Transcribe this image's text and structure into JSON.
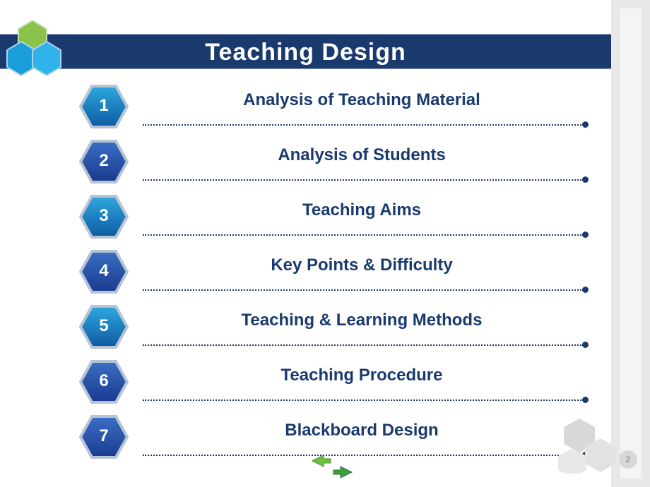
{
  "title": "Teaching Design",
  "title_bar_color": "#1a3a6e",
  "title_text_color": "#ffffff",
  "sidebar_color": "#e8e8e8",
  "sidebar_inner_color": "#f4f4f4",
  "logo_hexes": [
    {
      "fill": "#8bc34a",
      "stroke": "#6b9e2f"
    },
    {
      "fill": "#1a9edb",
      "stroke": "#0d6fa3"
    },
    {
      "fill": "#2fb3e8",
      "stroke": "#0d6fa3"
    }
  ],
  "item_text_color": "#1a3a6e",
  "item_number_color": "#ffffff",
  "dotted_line_color": "#1a3a6e",
  "items": [
    {
      "num": "1",
      "label": "Analysis of Teaching Material",
      "hex_fill_top": "#2fa8e0",
      "hex_fill_bot": "#0d5aa0",
      "hex_border": "#b8c4d4"
    },
    {
      "num": "2",
      "label": "Analysis of Students",
      "hex_fill_top": "#3a6fc4",
      "hex_fill_bot": "#1a3a8e",
      "hex_border": "#b8c4d4"
    },
    {
      "num": "3",
      "label": "Teaching Aims",
      "hex_fill_top": "#2fa8e0",
      "hex_fill_bot": "#0d5aa0",
      "hex_border": "#b8c4d4"
    },
    {
      "num": "4",
      "label": "Key Points & Difficulty",
      "hex_fill_top": "#3a6fc4",
      "hex_fill_bot": "#1a3a8e",
      "hex_border": "#b8c4d4"
    },
    {
      "num": "5",
      "label": "Teaching & Learning Methods",
      "hex_fill_top": "#2fa8e0",
      "hex_fill_bot": "#0d5aa0",
      "hex_border": "#b8c4d4"
    },
    {
      "num": "6",
      "label": "Teaching Procedure",
      "hex_fill_top": "#3a6fc4",
      "hex_fill_bot": "#1a3a8e",
      "hex_border": "#b8c4d4"
    },
    {
      "num": "7",
      "label": "Blackboard Design",
      "hex_fill_top": "#3a6fc4",
      "hex_fill_bot": "#1a3a8e",
      "hex_border": "#b8c4d4"
    }
  ],
  "decor_hex_color": "#d4d4d4",
  "page_number": "2",
  "arrows": {
    "left_color": "#6fbf3f",
    "right_color": "#3f9f3f"
  }
}
